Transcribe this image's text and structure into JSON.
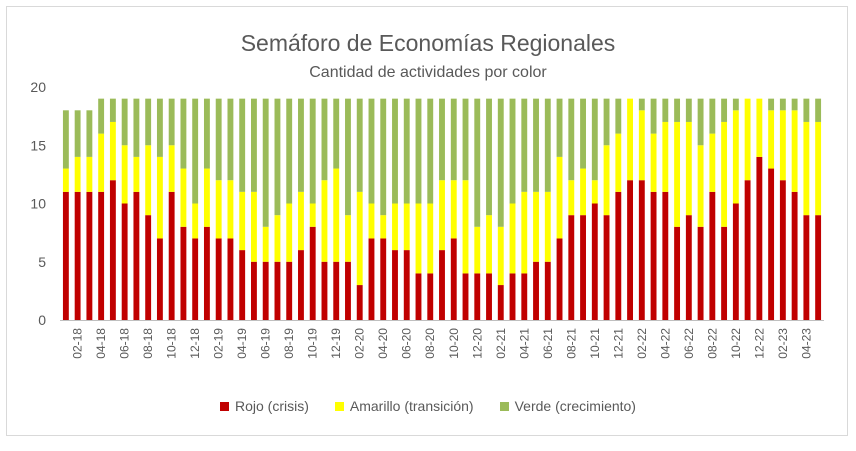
{
  "chart_data": {
    "type": "bar",
    "stacked": true,
    "title": "Semáforo de Economías Regionales",
    "subtitle": "Cantidad de actividades por color",
    "ylim": [
      0,
      20
    ],
    "yticks": [
      0,
      5,
      10,
      15,
      20
    ],
    "grid": false,
    "legend_position": "bottom",
    "categories": [
      "01-18",
      "02-18",
      "03-18",
      "04-18",
      "05-18",
      "06-18",
      "07-18",
      "08-18",
      "09-18",
      "10-18",
      "11-18",
      "12-18",
      "01-19",
      "02-19",
      "03-19",
      "04-19",
      "05-19",
      "06-19",
      "07-19",
      "08-19",
      "09-19",
      "10-19",
      "11-19",
      "12-19",
      "01-20",
      "02-20",
      "03-20",
      "04-20",
      "05-20",
      "06-20",
      "07-20",
      "08-20",
      "09-20",
      "10-20",
      "11-20",
      "12-20",
      "01-21",
      "02-21",
      "03-21",
      "04-21",
      "05-21",
      "06-21",
      "07-21",
      "08-21",
      "09-21",
      "10-21",
      "11-21",
      "12-21",
      "01-22",
      "02-22",
      "03-22",
      "04-22",
      "05-22",
      "06-22",
      "07-22",
      "08-22",
      "09-22",
      "10-22",
      "11-22",
      "12-22",
      "01-23",
      "02-23",
      "03-23",
      "04-23",
      "05-23"
    ],
    "x_tick_labels": [
      "02-18",
      "04-18",
      "06-18",
      "08-18",
      "10-18",
      "12-18",
      "02-19",
      "04-19",
      "06-19",
      "08-19",
      "10-19",
      "12-19",
      "02-20",
      "04-20",
      "06-20",
      "08-20",
      "10-20",
      "12-20",
      "02-21",
      "04-21",
      "06-21",
      "08-21",
      "10-21",
      "12-21",
      "02-22",
      "04-22",
      "06-22",
      "08-22",
      "10-22",
      "12-22",
      "02-23",
      "04-23"
    ],
    "series": [
      {
        "name": "Rojo (crisis)",
        "color": "#c00000",
        "values": [
          11,
          11,
          11,
          11,
          12,
          10,
          11,
          9,
          7,
          11,
          8,
          7,
          8,
          7,
          7,
          6,
          5,
          5,
          5,
          5,
          6,
          8,
          5,
          5,
          5,
          3,
          7,
          7,
          6,
          6,
          4,
          4,
          6,
          7,
          4,
          4,
          4,
          3,
          4,
          4,
          5,
          5,
          7,
          9,
          9,
          10,
          9,
          11,
          12,
          12,
          11,
          11,
          8,
          9,
          8,
          11,
          8,
          10,
          12,
          14,
          13,
          12,
          11,
          9,
          9
        ]
      },
      {
        "name": "Amarillo (transición)",
        "color": "#ffff00",
        "values": [
          2,
          3,
          3,
          5,
          5,
          5,
          3,
          6,
          7,
          4,
          5,
          3,
          5,
          5,
          5,
          5,
          6,
          3,
          4,
          5,
          5,
          2,
          7,
          8,
          4,
          8,
          3,
          2,
          4,
          4,
          6,
          6,
          6,
          5,
          8,
          4,
          5,
          5,
          6,
          7,
          6,
          6,
          7,
          3,
          4,
          2,
          6,
          5,
          7,
          6,
          5,
          6,
          9,
          8,
          7,
          5,
          9,
          8,
          7,
          5,
          5,
          6,
          7,
          8,
          8
        ]
      },
      {
        "name": "Verde (crecimiento)",
        "color": "#9bbb59",
        "values": [
          5,
          4,
          4,
          3,
          2,
          4,
          5,
          4,
          5,
          4,
          6,
          9,
          6,
          7,
          7,
          8,
          8,
          11,
          10,
          9,
          8,
          9,
          7,
          6,
          10,
          8,
          9,
          10,
          9,
          9,
          9,
          9,
          7,
          7,
          7,
          11,
          10,
          11,
          9,
          8,
          8,
          8,
          5,
          7,
          6,
          7,
          4,
          3,
          0,
          1,
          3,
          2,
          2,
          2,
          4,
          3,
          2,
          1,
          0,
          0,
          1,
          1,
          1,
          2,
          2
        ]
      }
    ]
  }
}
